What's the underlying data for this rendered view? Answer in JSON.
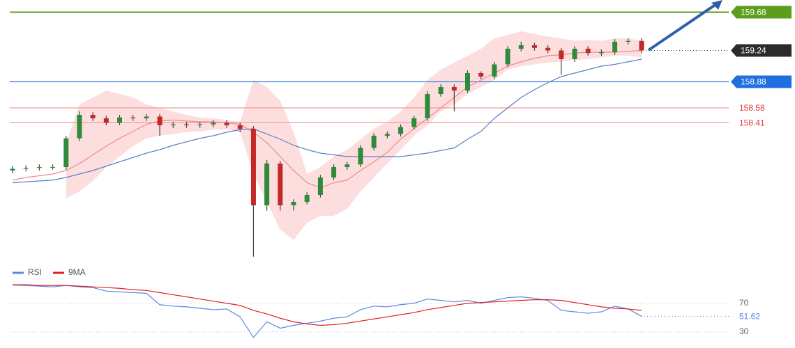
{
  "chart_data": [
    {
      "type": "candlestick",
      "ylim": [
        156.78,
        159.82
      ],
      "up_color": "#2f8a3a",
      "down_color": "#c62828",
      "open": [
        157.86,
        157.88,
        157.89,
        157.9,
        157.9,
        158.23,
        158.5,
        158.46,
        158.41,
        158.47,
        158.46,
        158.48,
        158.38,
        158.39,
        158.38,
        158.39,
        158.41,
        158.38,
        158.34,
        157.46,
        157.94,
        157.46,
        157.5,
        157.58,
        157.78,
        157.9,
        157.93,
        158.12,
        158.26,
        158.28,
        158.36,
        158.46,
        158.74,
        158.82,
        158.78,
        158.98,
        158.94,
        159.08,
        159.26,
        159.3,
        159.27,
        159.24,
        159.14,
        159.26,
        159.21,
        159.22,
        159.34,
        159.35
      ],
      "high": [
        157.91,
        157.92,
        157.93,
        157.93,
        158.26,
        158.54,
        158.53,
        158.49,
        158.5,
        158.5,
        158.51,
        158.51,
        158.42,
        158.42,
        158.42,
        158.44,
        158.44,
        158.41,
        158.37,
        157.98,
        157.97,
        157.53,
        157.61,
        157.81,
        157.93,
        157.96,
        158.15,
        158.29,
        158.31,
        158.39,
        158.49,
        158.77,
        158.85,
        158.85,
        159.01,
        159.0,
        159.11,
        159.29,
        159.34,
        159.33,
        159.3,
        159.27,
        159.29,
        159.29,
        159.25,
        159.37,
        159.38,
        159.38
      ],
      "low": [
        157.83,
        157.85,
        157.86,
        157.87,
        157.87,
        158.2,
        158.43,
        158.38,
        158.38,
        158.43,
        158.43,
        158.26,
        158.35,
        158.35,
        158.35,
        158.36,
        158.35,
        158.3,
        156.87,
        157.4,
        157.4,
        157.4,
        157.47,
        157.55,
        157.75,
        157.87,
        157.9,
        158.09,
        158.23,
        158.25,
        158.33,
        158.43,
        158.71,
        158.54,
        158.75,
        158.91,
        158.91,
        159.05,
        159.23,
        159.24,
        159.21,
        158.96,
        159.11,
        159.18,
        159.18,
        159.19,
        159.31,
        159.21
      ],
      "close": [
        157.88,
        157.89,
        157.9,
        157.9,
        158.23,
        158.5,
        158.46,
        158.41,
        158.47,
        158.46,
        158.48,
        158.38,
        158.39,
        158.38,
        158.39,
        158.41,
        158.38,
        158.34,
        157.46,
        157.94,
        157.46,
        157.5,
        157.58,
        157.78,
        157.9,
        157.93,
        158.12,
        158.26,
        158.28,
        158.36,
        158.46,
        158.74,
        158.82,
        158.78,
        158.98,
        158.94,
        159.08,
        159.26,
        159.3,
        159.27,
        159.24,
        159.14,
        159.26,
        159.21,
        159.22,
        159.34,
        159.35,
        159.24
      ],
      "band": {
        "color": "#fbd3d3",
        "upper": [
          null,
          null,
          null,
          null,
          158.18,
          158.62,
          158.7,
          158.78,
          158.74,
          158.7,
          158.62,
          158.58,
          158.54,
          158.5,
          158.47,
          158.46,
          158.44,
          158.42,
          158.9,
          158.82,
          158.66,
          158.3,
          157.82,
          157.9,
          158.02,
          158.1,
          158.22,
          158.34,
          158.42,
          158.54,
          158.7,
          158.9,
          159.02,
          159.1,
          159.18,
          159.26,
          159.38,
          159.42,
          159.46,
          159.43,
          159.4,
          159.38,
          159.35,
          159.36,
          159.35,
          159.38,
          159.38,
          159.35
        ],
        "lower": [
          null,
          null,
          null,
          null,
          157.54,
          157.62,
          157.74,
          157.9,
          158.02,
          158.14,
          158.23,
          158.26,
          158.28,
          158.3,
          158.31,
          158.33,
          158.33,
          158.3,
          157.82,
          157.5,
          157.18,
          157.06,
          157.26,
          157.34,
          157.34,
          157.42,
          157.62,
          157.78,
          157.94,
          158.1,
          158.26,
          158.38,
          158.54,
          158.62,
          158.74,
          158.82,
          158.9,
          159.02,
          159.06,
          159.08,
          159.1,
          159.11,
          159.13,
          159.14,
          159.16,
          159.18,
          159.18,
          159.16
        ]
      },
      "series": [
        {
          "color": "#f08a8a",
          "values": [
            157.75,
            157.78,
            157.8,
            157.82,
            157.86,
            157.94,
            158.04,
            158.14,
            158.23,
            158.31,
            158.39,
            158.43,
            158.44,
            158.43,
            158.42,
            158.42,
            158.41,
            158.39,
            158.3,
            158.18,
            158.02,
            157.86,
            157.72,
            157.66,
            157.72,
            157.75,
            157.86,
            157.96,
            158.07,
            158.22,
            158.34,
            158.46,
            158.58,
            158.7,
            158.82,
            158.9,
            158.98,
            159.06,
            159.11,
            159.15,
            159.18,
            159.19,
            159.21,
            159.22,
            159.22,
            159.22,
            159.23,
            159.24
          ]
        },
        {
          "color": "#5b7fc7",
          "values": [
            157.72,
            157.73,
            157.74,
            157.75,
            157.78,
            157.82,
            157.86,
            157.91,
            157.96,
            158.01,
            158.06,
            158.1,
            158.15,
            158.19,
            158.23,
            158.26,
            158.3,
            158.33,
            158.34,
            158.28,
            158.22,
            158.15,
            158.1,
            158.06,
            158.04,
            158.02,
            158.02,
            158.02,
            158.02,
            158.02,
            158.04,
            158.06,
            158.09,
            158.12,
            158.22,
            158.31,
            158.46,
            158.58,
            158.7,
            158.79,
            158.87,
            158.94,
            158.98,
            159.02,
            159.06,
            159.08,
            159.11,
            159.14
          ]
        }
      ],
      "levels": [
        {
          "value": 159.68,
          "color": "#5a9e1a",
          "tag_color": "#5a9e1a"
        },
        {
          "value": 158.88,
          "color": "#3f7ee0",
          "tag_color": "#1f6fe0"
        },
        {
          "value": 158.58,
          "color": "#f29a9a"
        },
        {
          "value": 158.41,
          "color": "#f29a9a"
        }
      ],
      "last_color": "#2b2b2b"
    },
    {
      "type": "line",
      "ylim": [
        18,
        100
      ],
      "yticks": [
        30,
        70
      ],
      "series": [
        {
          "name": "RSI",
          "color": "#5b86e5",
          "values": [
            95.4,
            95,
            94,
            93,
            95,
            93,
            92,
            87,
            86,
            85,
            84,
            68,
            66,
            65,
            63,
            61,
            62,
            51,
            22,
            44,
            35,
            39,
            42,
            45,
            49,
            51,
            61,
            66,
            65,
            68,
            70,
            76,
            74,
            72,
            74,
            70,
            74,
            78,
            79,
            77,
            74,
            60,
            58,
            56,
            58,
            66,
            62,
            51.62
          ]
        },
        {
          "name": "9MA",
          "color": "#e02020",
          "values": [
            96,
            96,
            95,
            95,
            95,
            94,
            93,
            92,
            91,
            89,
            88,
            85,
            82,
            79,
            76,
            73,
            70,
            67,
            60,
            55,
            49,
            44,
            41,
            39,
            40,
            42,
            45,
            48,
            51,
            54,
            57,
            61,
            64,
            67,
            70,
            71,
            72,
            73,
            74,
            75,
            75,
            74,
            71,
            68,
            65,
            63,
            62,
            60
          ]
        }
      ]
    }
  ]
}
